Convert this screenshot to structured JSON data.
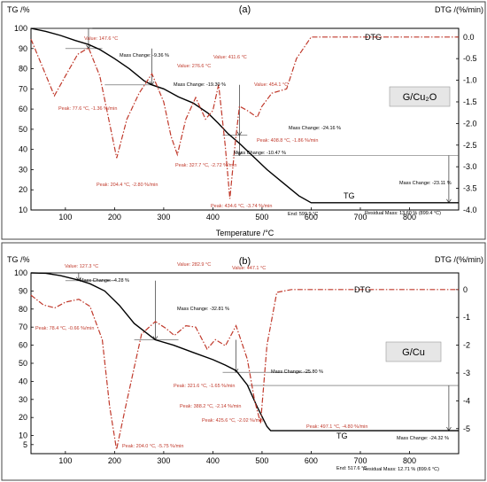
{
  "chart_data": [
    {
      "type": "line",
      "panel": "(a)",
      "ylabel_left": "TG /%",
      "ylabel_right": "DTG /(%/min)",
      "xlabel": "Temperature /°C",
      "xlim": [
        30,
        900
      ],
      "ylim_left": [
        10,
        100
      ],
      "ylim_right": [
        -4.0,
        0.2
      ],
      "x_ticks": [
        100,
        200,
        300,
        400,
        500,
        600,
        700,
        800
      ],
      "y_ticks_left": [
        10,
        20,
        30,
        40,
        50,
        60,
        70,
        80,
        90,
        100
      ],
      "y_ticks_right": [
        0.0,
        -0.5,
        -1.0,
        -1.5,
        -2.0,
        -2.5,
        -3.0,
        -3.5,
        -4.0
      ],
      "y_tick_labels_right": [
        "0.0",
        "-0.5",
        "-1.0",
        "-1.5",
        "-2.0",
        "-2.5",
        "-3.0",
        "-3.5",
        "-4.0"
      ],
      "sample_label": "G/Cu₂O",
      "series": [
        {
          "name": "TG",
          "color": "#000000",
          "axis": "left",
          "x": [
            30,
            60,
            90,
            120,
            147,
            170,
            200,
            230,
            260,
            276,
            300,
            330,
            360,
            390,
            411,
            430,
            454,
            480,
            510,
            540,
            575,
            600,
            650,
            700,
            800,
            900
          ],
          "y": [
            100,
            98.5,
            96.5,
            94,
            92,
            89.5,
            85,
            80,
            74,
            72,
            70,
            66,
            63,
            58,
            53,
            48,
            43,
            37,
            30,
            24,
            17,
            13.6,
            13.6,
            13.6,
            13.6,
            13.6
          ]
        },
        {
          "name": "DTG",
          "color": "#c0392b",
          "axis": "right",
          "x": [
            30,
            50,
            77.6,
            100,
            125,
            147,
            170,
            190,
            204.4,
            225,
            250,
            276,
            300,
            315,
            327.7,
            345,
            365,
            385,
            400,
            411.6,
            425,
            434.6,
            445,
            454.1,
            470,
            490,
            500,
            520,
            550,
            570,
            600,
            650,
            700,
            800,
            900
          ],
          "y": [
            -0.05,
            -0.6,
            -1.36,
            -0.9,
            -0.4,
            -0.25,
            -0.9,
            -2.0,
            -2.8,
            -1.9,
            -1.3,
            -0.85,
            -1.5,
            -2.3,
            -2.72,
            -1.9,
            -1.4,
            -1.9,
            -1.7,
            -1.1,
            -2.5,
            -3.74,
            -2.5,
            -1.6,
            -1.7,
            -1.86,
            -1.6,
            -1.3,
            -1.2,
            -0.5,
            0.0,
            0.0,
            0.0,
            0.0,
            0.0
          ]
        }
      ],
      "annotations": [
        {
          "text": "Value: 147.6 °C",
          "x": 147.6,
          "y": 92,
          "color": "#c0392b"
        },
        {
          "text": "Value: 276.6 °C",
          "x": 276.6,
          "y": 72,
          "color": "#c0392b"
        },
        {
          "text": "Value: 411.6 °C",
          "x": 411.6,
          "y": 52,
          "color": "#c0392b"
        },
        {
          "text": "Value: 454.1 °C",
          "x": 454.1,
          "y": 43,
          "color": "#c0392b"
        },
        {
          "text": "Mass Change: -9.36 %",
          "color": "#000000"
        },
        {
          "text": "Mass Change: -19.30 %",
          "color": "#000000"
        },
        {
          "text": "Mass Change: -24.16 %",
          "color": "#000000"
        },
        {
          "text": "Mass Change: -10.47 %",
          "color": "#000000"
        },
        {
          "text": "Mass Change: -23.11 %",
          "color": "#000000"
        },
        {
          "text": "Peak: 77.6 °C, -1.36 %/min",
          "color": "#c0392b"
        },
        {
          "text": "Peak: 204.4 °C, -2.80 %/min",
          "color": "#c0392b"
        },
        {
          "text": "Peak: 327.7 °C, -2.72 %/min",
          "color": "#c0392b"
        },
        {
          "text": "Peak: 408.8 °C, -1.86 %/min",
          "color": "#c0392b"
        },
        {
          "text": "Peak: 434.6 °C, -3.74 %/min",
          "color": "#c0392b"
        },
        {
          "text": "End: 599.9 °C",
          "color": "#000000"
        },
        {
          "text": "Residual Mass: 13.60 % (899.4 °C)",
          "color": "#000000"
        }
      ],
      "curve_labels": {
        "DTG": "DTG",
        "TG": "TG"
      }
    },
    {
      "type": "line",
      "panel": "(b)",
      "ylabel_left": "TG /%",
      "ylabel_right": "DTG /(%/min)",
      "xlabel": "",
      "xlim": [
        30,
        900
      ],
      "ylim_left": [
        0,
        100
      ],
      "ylim_right": [
        -5.9,
        0.6
      ],
      "x_ticks": [
        100,
        200,
        300,
        400,
        500,
        600,
        700,
        800
      ],
      "y_ticks_left": [
        5,
        10,
        20,
        30,
        40,
        50,
        60,
        70,
        80,
        90,
        100
      ],
      "y_ticks_right": [
        0,
        -1,
        -2,
        -3,
        -4,
        -5
      ],
      "y_tick_labels_right": [
        "0",
        "-1",
        "-2",
        "-3",
        "-4",
        "-5"
      ],
      "sample_label": "G/Cu",
      "series": [
        {
          "name": "TG",
          "color": "#000000",
          "axis": "left",
          "x": [
            30,
            60,
            90,
            127.3,
            150,
            180,
            210,
            240,
            282.9,
            320,
            360,
            400,
            425,
            447.1,
            470,
            490,
            510,
            517.6,
            550,
            600,
            700,
            800,
            900
          ],
          "y": [
            100,
            99.8,
            98.5,
            96,
            94,
            90,
            82,
            72,
            63,
            60,
            56,
            52,
            49,
            46,
            38,
            26,
            15,
            12.71,
            12.71,
            12.71,
            12.71,
            12.71,
            12.71
          ]
        },
        {
          "name": "DTG",
          "color": "#c0392b",
          "axis": "right",
          "x": [
            30,
            55,
            78.4,
            100,
            127.3,
            150,
            175,
            190,
            204.0,
            225,
            255,
            282.9,
            305,
            321.6,
            345,
            365,
            388.2,
            405,
            425.6,
            447.1,
            470,
            485,
            497.1,
            510,
            530,
            560,
            600,
            700,
            800,
            900
          ],
          "y": [
            -0.2,
            -0.55,
            -0.66,
            -0.45,
            -0.35,
            -0.6,
            -1.8,
            -4.2,
            -5.75,
            -4.0,
            -1.6,
            -1.15,
            -1.4,
            -1.65,
            -1.3,
            -1.35,
            -2.14,
            -1.8,
            -2.02,
            -1.3,
            -2.5,
            -4.0,
            -4.8,
            -2.0,
            -0.1,
            0.0,
            0.0,
            0.0,
            0.0,
            0.0
          ]
        }
      ],
      "annotations": [
        {
          "text": "Value: 127.3 °C",
          "color": "#c0392b"
        },
        {
          "text": "Value: 282.9 °C",
          "color": "#c0392b"
        },
        {
          "text": "Value: 447.1 °C",
          "color": "#c0392b"
        },
        {
          "text": "Mass Change: -4.28 %",
          "color": "#000000"
        },
        {
          "text": "Mass Change: -32.81 %",
          "color": "#000000"
        },
        {
          "text": "Mass Change: -25.80 %",
          "color": "#000000"
        },
        {
          "text": "Mass Change: -24.32 %",
          "color": "#000000"
        },
        {
          "text": "Peak: 78.4 °C, -0.66 %/min",
          "color": "#c0392b"
        },
        {
          "text": "Peak: 321.6 °C, -1.65 %/min",
          "color": "#c0392b"
        },
        {
          "text": "Peak: 388.2 °C, -2.14 %/min",
          "color": "#c0392b"
        },
        {
          "text": "Peak: 425.6 °C, -2.02 %/min",
          "color": "#c0392b"
        },
        {
          "text": "Peak: 497.1 °C, -4.80 %/min",
          "color": "#c0392b"
        },
        {
          "text": "Peak: 204.0 °C, -5.75 %/min",
          "color": "#c0392b"
        },
        {
          "text": "End: 517.6 °C",
          "color": "#000000"
        },
        {
          "text": "Residual Mass: 12.71 % (899.6 °C)",
          "color": "#000000"
        }
      ],
      "curve_labels": {
        "DTG": "DTG",
        "TG": "TG"
      }
    }
  ]
}
